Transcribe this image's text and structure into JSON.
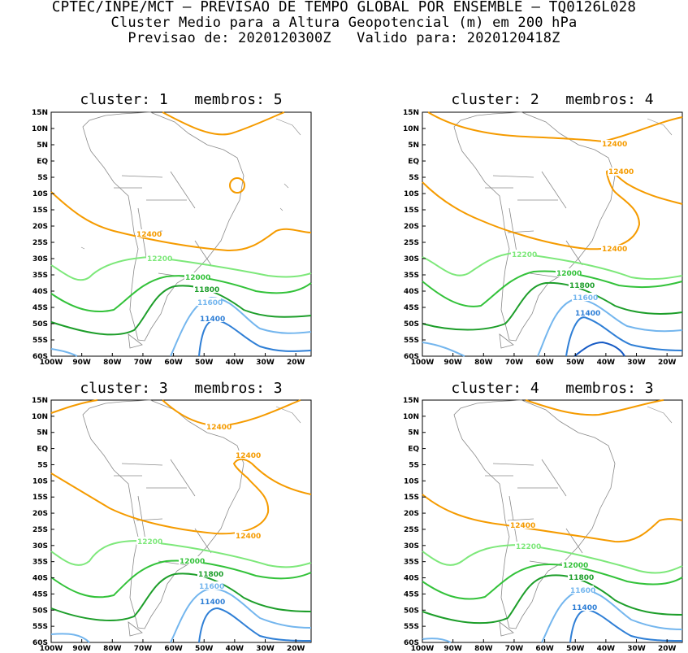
{
  "header": {
    "line1": "CPTEC/INPE/MCT – PREVISAO DE TEMPO GLOBAL POR ENSEMBLE – TQ0126L028",
    "line2": "Cluster Medio para a Altura Geopotencial (m) em 200 hPa",
    "line3": "Previsao de: 2020120300Z   Valido para: 2020120418Z"
  },
  "axes": {
    "lat_ticks": [
      "15N",
      "10N",
      "5N",
      "EQ",
      "5S",
      "10S",
      "15S",
      "20S",
      "25S",
      "30S",
      "35S",
      "40S",
      "45S",
      "50S",
      "55S",
      "60S"
    ],
    "lon_ticks": [
      "100W",
      "90W",
      "80W",
      "70W",
      "60W",
      "50W",
      "40W",
      "30W",
      "20W"
    ]
  },
  "colors": {
    "c12400": "#f59b00",
    "c12200": "#7de87a",
    "c12000": "#33c23a",
    "c11800": "#1d9e2a",
    "c11600": "#74b6ee",
    "c11400": "#2f7fd6",
    "c11200": "#1559c4",
    "coast": "#8a8a8a"
  },
  "panels": [
    {
      "title": "cluster: 1   membros: 5",
      "labels": {
        "l12400": "12400",
        "l12200": "12200",
        "l12000": "12000",
        "l11800": "11800",
        "l11600": "11600",
        "l11400": "11400"
      }
    },
    {
      "title": "cluster: 2   membros: 4",
      "labels": {
        "l12400a": "12400",
        "l12400b": "12400",
        "l12400c": "12400",
        "l12200": "12200",
        "l12000": "12000",
        "l11800": "11800",
        "l11600": "11600",
        "l11400": "11400"
      }
    },
    {
      "title": "cluster: 3   membros: 3",
      "labels": {
        "l12400a": "12400",
        "l12400b": "12400",
        "l12400c": "12400",
        "l12200": "12200",
        "l12000": "12000",
        "l11800": "11800",
        "l11600": "11600",
        "l11400": "11400"
      }
    },
    {
      "title": "cluster: 4   membros: 3",
      "labels": {
        "l12400": "12400",
        "l12200": "12200",
        "l12000": "12000",
        "l11800": "11800",
        "l11600": "11600",
        "l11400": "11400"
      }
    }
  ]
}
